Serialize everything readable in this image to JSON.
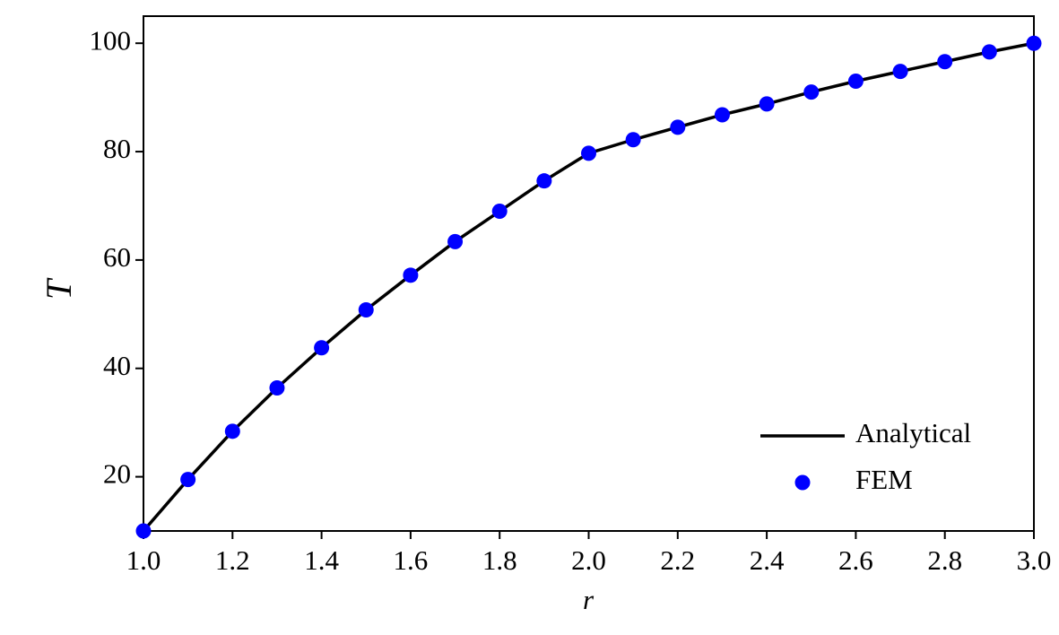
{
  "chart_data": {
    "type": "line-scatter",
    "x_label": "r",
    "y_label": "T",
    "x": [
      1.0,
      1.1,
      1.2,
      1.3,
      1.4,
      1.5,
      1.6,
      1.7,
      1.8,
      1.9,
      2.0,
      2.1,
      2.2,
      2.3,
      2.4,
      2.5,
      2.6,
      2.7,
      2.8,
      2.9,
      3.0
    ],
    "series": [
      {
        "name": "Analytical",
        "color": "#000000",
        "mode": "line",
        "values": [
          10,
          19.5,
          28.4,
          36.4,
          43.8,
          50.8,
          57.2,
          63.4,
          69.0,
          74.6,
          79.7,
          82.2,
          84.5,
          86.8,
          88.8,
          91.0,
          93.0,
          94.8,
          96.6,
          98.4,
          100
        ]
      },
      {
        "name": "FEM",
        "color": "#0000ff",
        "mode": "markers",
        "values": [
          10,
          19.5,
          28.4,
          36.4,
          43.8,
          50.8,
          57.2,
          63.4,
          69.0,
          74.6,
          79.7,
          82.2,
          84.5,
          86.8,
          88.8,
          91.0,
          93.0,
          94.8,
          96.6,
          98.4,
          100
        ]
      }
    ],
    "xlim": [
      1.0,
      3.0
    ],
    "ylim": [
      10,
      105
    ],
    "xticks": [
      {
        "value": 1.0,
        "label": "1.0"
      },
      {
        "value": 1.2,
        "label": "1.2"
      },
      {
        "value": 1.4,
        "label": "1.4"
      },
      {
        "value": 1.6,
        "label": "1.6"
      },
      {
        "value": 1.8,
        "label": "1.8"
      },
      {
        "value": 2.0,
        "label": "2.0"
      },
      {
        "value": 2.2,
        "label": "2.2"
      },
      {
        "value": 2.4,
        "label": "2.4"
      },
      {
        "value": 2.6,
        "label": "2.6"
      },
      {
        "value": 2.8,
        "label": "2.8"
      },
      {
        "value": 3.0,
        "label": "3.0"
      }
    ],
    "yticks": [
      20,
      40,
      60,
      80,
      100
    ],
    "grid": false,
    "legend": "lower right"
  }
}
